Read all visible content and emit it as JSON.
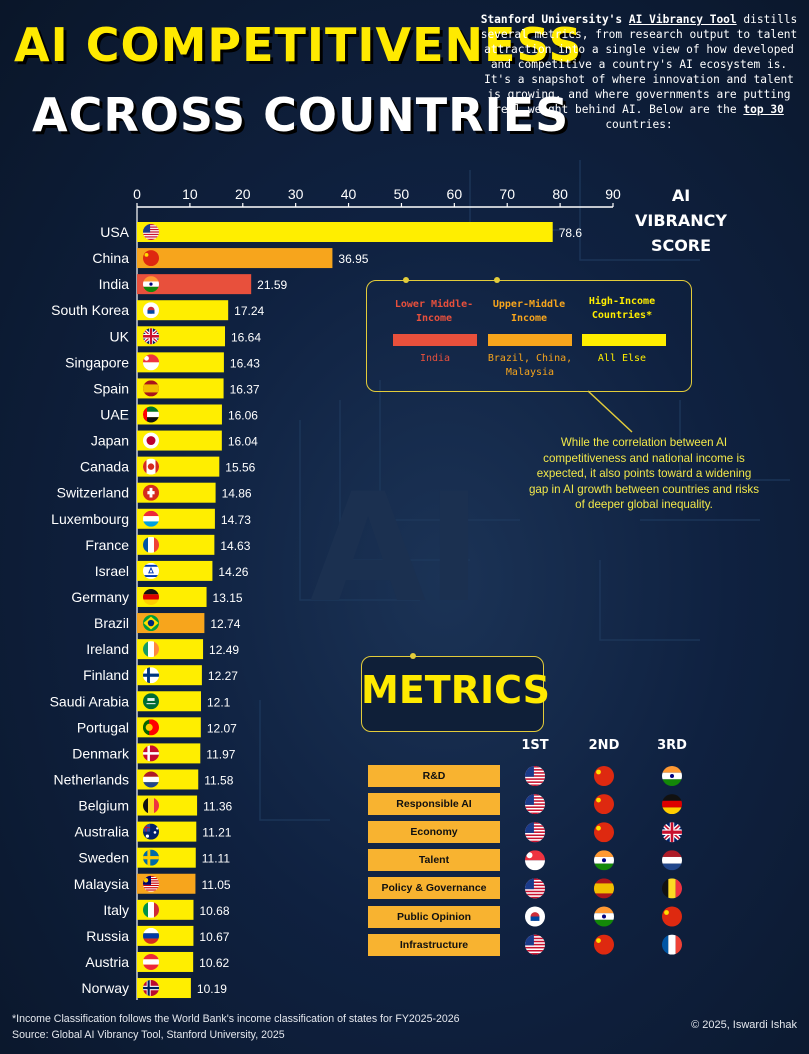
{
  "title_line1": "AI COMPETITIVENESS",
  "title_line2": "ACROSS COUNTRIES",
  "intro": {
    "prefix": "Stanford University's ",
    "link": "AI Vibrancy Tool",
    "mid": " distills several metrics, from research output to talent attraction into a single view of how developed and competitive a country's AI ecosystem is. It's a snapshot of where innovation and talent is growing, and where governments are putting real weight behind AI. Below are the ",
    "highlight": "top 30",
    "suffix": " countries:"
  },
  "chart_data": {
    "type": "bar",
    "orientation": "horizontal",
    "axis_title": "AI VIBRANCY SCORE",
    "xlim": [
      0,
      90
    ],
    "xticks": [
      0,
      10,
      20,
      30,
      40,
      50,
      60,
      70,
      80,
      90
    ],
    "categories": [
      "USA",
      "China",
      "India",
      "South Korea",
      "UK",
      "Singapore",
      "Spain",
      "UAE",
      "Japan",
      "Canada",
      "Switzerland",
      "Luxembourg",
      "France",
      "Israel",
      "Germany",
      "Brazil",
      "Ireland",
      "Finland",
      "Saudi Arabia",
      "Portugal",
      "Denmark",
      "Netherlands",
      "Belgium",
      "Australia",
      "Sweden",
      "Malaysia",
      "Italy",
      "Russia",
      "Austria",
      "Norway"
    ],
    "values": [
      78.6,
      36.95,
      21.59,
      17.24,
      16.64,
      16.43,
      16.37,
      16.06,
      16.04,
      15.56,
      14.86,
      14.73,
      14.63,
      14.26,
      13.15,
      12.74,
      12.49,
      12.27,
      12.1,
      12.07,
      11.97,
      11.58,
      11.36,
      11.21,
      11.11,
      11.05,
      10.68,
      10.67,
      10.62,
      10.19
    ],
    "income_group": [
      "high",
      "upper",
      "lower",
      "high",
      "high",
      "high",
      "high",
      "high",
      "high",
      "high",
      "high",
      "high",
      "high",
      "high",
      "high",
      "upper",
      "high",
      "high",
      "high",
      "high",
      "high",
      "high",
      "high",
      "high",
      "high",
      "upper",
      "high",
      "high",
      "high",
      "high"
    ],
    "flags": [
      "flag-usa",
      "flag-china",
      "flag-india",
      "flag-south-korea",
      "flag-uk",
      "flag-singapore",
      "flag-spain",
      "flag-uae",
      "flag-japan",
      "flag-canada",
      "flag-switzerland",
      "flag-luxembourg",
      "flag-france",
      "flag-israel",
      "flag-germany",
      "flag-brazil",
      "flag-ireland",
      "flag-finland",
      "flag-saudi-arabia",
      "flag-portugal",
      "flag-denmark",
      "flag-netherlands",
      "flag-belgium",
      "flag-australia",
      "flag-sweden",
      "flag-malaysia",
      "flag-italy",
      "flag-russia",
      "flag-austria",
      "flag-norway"
    ]
  },
  "colors": {
    "high": "#ffee00",
    "upper": "#f7a51c",
    "lower": "#e8503c",
    "accent": "#e3cc3a"
  },
  "legend": [
    {
      "key": "lower",
      "title": "Lower Middle-Income",
      "examples": "India",
      "color": "#e8503c"
    },
    {
      "key": "upper",
      "title": "Upper-Middle Income",
      "examples": "Brazil, China, Malaysia",
      "color": "#f7a51c"
    },
    {
      "key": "high",
      "title": "High-Income Countries*",
      "examples": "All Else",
      "color": "#ffee00"
    }
  ],
  "note": "While the correlation between AI competitiveness and national income is expected, it also points toward a widening gap in AI growth between countries and risks of deeper global inequality.",
  "metrics": {
    "title": "METRICS",
    "rank_headers": [
      "1ST",
      "2ND",
      "3RD"
    ],
    "rows": [
      {
        "label": "R&D",
        "ranks": [
          "flag-usa",
          "flag-china",
          "flag-india"
        ]
      },
      {
        "label": "Responsible AI",
        "ranks": [
          "flag-usa",
          "flag-china",
          "flag-germany"
        ]
      },
      {
        "label": "Economy",
        "ranks": [
          "flag-usa",
          "flag-china",
          "flag-uk"
        ]
      },
      {
        "label": "Talent",
        "ranks": [
          "flag-singapore",
          "flag-india",
          "flag-netherlands"
        ]
      },
      {
        "label": "Policy & Governance",
        "ranks": [
          "flag-usa",
          "flag-spain",
          "flag-belgium"
        ]
      },
      {
        "label": "Public Opinion",
        "ranks": [
          "flag-south-korea",
          "flag-india",
          "flag-china"
        ]
      },
      {
        "label": "Infrastructure",
        "ranks": [
          "flag-usa",
          "flag-china",
          "flag-france"
        ]
      }
    ]
  },
  "footnote_line1": "*Income Classification follows the World Bank's income classification of states for FY2025-2026",
  "footnote_line2": "Source: Global AI Vibrancy Tool, Stanford University, 2025",
  "copyright": "© 2025, Iswardi Ishak"
}
